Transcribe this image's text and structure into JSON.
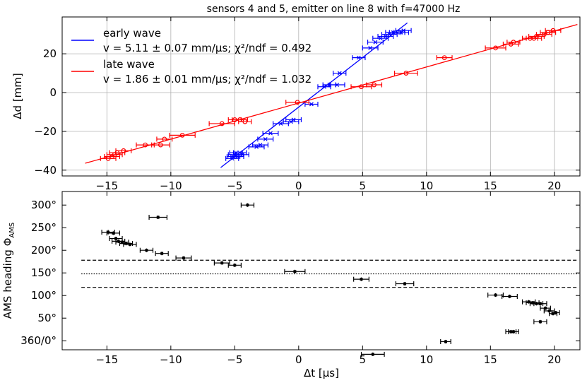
{
  "figure": {
    "title": "sensors 4 and 5, emitter on line 8 with f=47000 Hz"
  },
  "chart_data": [
    {
      "type": "scatter",
      "title": "sensors 4 and 5, emitter on line 8 with f=47000 Hz",
      "xlabel": "",
      "ylabel": "Δd [mm]",
      "xlim": [
        -18.5,
        22
      ],
      "ylim": [
        -43,
        39
      ],
      "xticks": [
        -15,
        -10,
        -5,
        0,
        5,
        10,
        15,
        20
      ],
      "yticks": [
        -40,
        -20,
        0,
        20
      ],
      "ytick_labels": [
        "−40",
        "−20",
        "0",
        "20"
      ],
      "grid": true,
      "legend_position": "top-left",
      "series": [
        {
          "name": "early wave",
          "legend_text": "v = 5.11 ± 0.07 mm/μs; χ²/ndf = 0.492",
          "color": "#0000ff",
          "marker": "x",
          "fit": {
            "slope": 5.11,
            "x0": -6.1,
            "x1": 8.5,
            "intercept": -7.5
          },
          "x": [
            -5.2,
            -5.0,
            -4.9,
            -5.1,
            -4.8,
            -4.6,
            -4.4,
            -3.3,
            -3.0,
            -2.6,
            -2.2,
            -1.4,
            -0.6,
            -0.4,
            1.0,
            2.0,
            2.4,
            3.0,
            3.2,
            4.7,
            5.6,
            6.0,
            6.4,
            6.8,
            7.1,
            7.4,
            7.7,
            8.0,
            8.2
          ],
          "y": [
            -34,
            -32,
            -31,
            -33,
            -33,
            -31,
            -32,
            -28,
            -27,
            -24,
            -21,
            -16,
            -15,
            -14,
            -6,
            3,
            4,
            4,
            10,
            18,
            23,
            26,
            28,
            29,
            30,
            31,
            31,
            31,
            32
          ],
          "xerr": [
            0.5,
            0.5,
            0.5,
            0.5,
            0.5,
            0.5,
            0.5,
            0.6,
            0.6,
            0.6,
            0.6,
            0.6,
            0.6,
            0.6,
            0.5,
            0.5,
            0.5,
            0.6,
            0.5,
            0.5,
            0.6,
            0.6,
            0.6,
            0.6,
            0.6,
            0.6,
            0.6,
            0.6,
            0.6
          ]
        },
        {
          "name": "late wave",
          "legend_text": "v = 1.86 ± 0.01 mm/μs; χ²/ndf = 1.032",
          "color": "#ff0000",
          "marker": "o",
          "fit": {
            "slope": 1.86,
            "x0": -16.7,
            "x1": 21.8,
            "intercept": -5.4
          },
          "x": [
            -14.9,
            -14.6,
            -14.4,
            -14.2,
            -13.7,
            -12.0,
            -10.8,
            -10.5,
            -9.1,
            -6.0,
            -5.0,
            -4.6,
            -4.2,
            -0.1,
            4.9,
            5.9,
            8.4,
            11.4,
            15.4,
            16.6,
            16.8,
            18.1,
            18.4,
            18.6,
            19.2,
            19.5,
            19.9
          ],
          "y": [
            -34,
            -33,
            -32,
            -31,
            -30,
            -27,
            -27,
            -24,
            -22,
            -16,
            -14,
            -14,
            -15,
            -5,
            3,
            4,
            10,
            18,
            23,
            25,
            26,
            28,
            28,
            29,
            30,
            31,
            32
          ],
          "xerr": [
            0.6,
            0.6,
            0.6,
            0.6,
            0.6,
            0.7,
            0.7,
            0.6,
            1.0,
            1.0,
            0.5,
            0.6,
            0.5,
            0.9,
            0.8,
            0.6,
            0.9,
            0.6,
            0.8,
            0.6,
            0.5,
            0.6,
            0.6,
            0.6,
            0.6,
            0.6,
            0.6
          ]
        }
      ]
    },
    {
      "type": "scatter",
      "title": "",
      "xlabel": "Δt [μs]",
      "ylabel": "AMS heading Φ_AMS",
      "xlim": [
        -18.5,
        22
      ],
      "ylim": [
        -20,
        330
      ],
      "xticks": [
        -15,
        -10,
        -5,
        0,
        5,
        10,
        15,
        20
      ],
      "xtick_labels": [
        "−15",
        "−10",
        "−5",
        "0",
        "5",
        "10",
        "15",
        "20"
      ],
      "yticks": [
        0,
        50,
        100,
        150,
        200,
        250,
        300
      ],
      "ytick_labels": [
        "360/0°",
        "50°",
        "100°",
        "150°",
        "200°",
        "250°",
        "300°"
      ],
      "grid": false,
      "reference_lines": [
        {
          "y": 178,
          "style": "dashed"
        },
        {
          "y": 148,
          "style": "dotted"
        },
        {
          "y": 118,
          "style": "dashed"
        }
      ],
      "series": [
        {
          "name": "",
          "color": "#000000",
          "marker": "s",
          "x": [
            -4.0,
            -11.0,
            -14.9,
            -14.5,
            -14.3,
            -14.1,
            -13.8,
            -13.5,
            -13.2,
            -11.9,
            -10.7,
            -9.0,
            -6.0,
            -5.0,
            -0.3,
            4.9,
            8.3,
            15.4,
            16.5,
            18.0,
            18.3,
            18.6,
            18.9,
            19.3,
            19.6,
            19.9,
            20.1,
            18.9,
            16.8,
            16.6,
            11.5,
            5.8
          ],
          "y": [
            300,
            273,
            240,
            238,
            226,
            220,
            218,
            215,
            213,
            200,
            193,
            183,
            172,
            167,
            153,
            136,
            126,
            101,
            98,
            86,
            84,
            82,
            82,
            72,
            66,
            60,
            62,
            42,
            20,
            20,
            -2,
            -30
          ],
          "xerr": [
            0.5,
            0.7,
            0.5,
            0.5,
            0.5,
            0.5,
            0.5,
            0.5,
            0.5,
            0.5,
            0.5,
            0.6,
            0.6,
            0.5,
            0.8,
            0.6,
            0.7,
            0.6,
            0.6,
            0.5,
            0.5,
            0.5,
            0.5,
            0.4,
            0.4,
            0.3,
            0.3,
            0.5,
            0.4,
            0.4,
            0.4,
            0.9
          ],
          "yerr": [
            4,
            4,
            5,
            4,
            4,
            4,
            4,
            4,
            4,
            4,
            4,
            4,
            4,
            4,
            4,
            4,
            4,
            4,
            4,
            4,
            4,
            4,
            4,
            4,
            4,
            4,
            4,
            4,
            4,
            4,
            4,
            4
          ]
        }
      ]
    }
  ]
}
